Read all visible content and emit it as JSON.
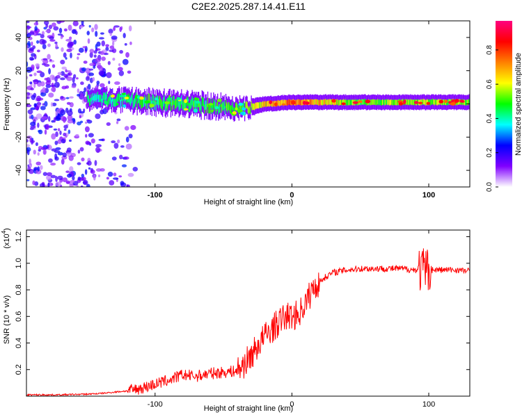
{
  "title": "C2E2.2025.287.14.41.E11",
  "chart_data": [
    {
      "type": "heatmap",
      "title": "C2E2.2025.287.14.41.E11",
      "xlabel": "Height of straight line (km)",
      "ylabel": "Frequency (Hz)",
      "xlim": [
        -194,
        130
      ],
      "ylim": [
        -50,
        50
      ],
      "x_ticks": [
        -100,
        0,
        100
      ],
      "y_ticks": [
        -40,
        -20,
        0,
        20,
        40
      ],
      "x_tick_labels": [
        "-100",
        "0",
        "100"
      ],
      "y_tick_labels": [
        "-40",
        "-20",
        "0",
        "20",
        "40"
      ],
      "colorbar": {
        "label": "Normalized spectral amplitude",
        "range": [
          0,
          0.97
        ],
        "ticks": [
          0,
          0.2,
          0.4,
          0.6,
          0.8
        ],
        "tick_labels": [
          "0.0",
          "0.2",
          "0.4",
          "0.6",
          "0.8"
        ],
        "colormap": [
          "#ffffff",
          "#8000ff",
          "#0000ff",
          "#00ffff",
          "#00ff00",
          "#ffff00",
          "#ff8000",
          "#ff0000",
          "#ff0080"
        ]
      },
      "description_points": [
        {
          "x": -160,
          "band": "noise",
          "amplitude": 0.35
        },
        {
          "x": -140,
          "center_hz": 3,
          "width_hz": 8,
          "amplitude": 0.45
        },
        {
          "x": -100,
          "center_hz": 1,
          "width_hz": 10,
          "amplitude": 0.5
        },
        {
          "x": -60,
          "center_hz": -1,
          "width_hz": 10,
          "amplitude": 0.5
        },
        {
          "x": -35,
          "center_hz": -3,
          "width_hz": 8,
          "amplitude": 0.55
        },
        {
          "x": -20,
          "center_hz": 0,
          "width_hz": 6,
          "amplitude": 0.7
        },
        {
          "x": 0,
          "center_hz": 1,
          "width_hz": 6,
          "amplitude": 0.8
        },
        {
          "x": 50,
          "center_hz": 1,
          "width_hz": 6,
          "amplitude": 0.55
        },
        {
          "x": 100,
          "center_hz": 1,
          "width_hz": 6,
          "amplitude": 0.6
        },
        {
          "x": 130,
          "center_hz": 1,
          "width_hz": 6,
          "amplitude": 0.55
        }
      ]
    },
    {
      "type": "line",
      "xlabel": "Height of straight line (km)",
      "ylabel": "SNR (10 * v/v)",
      "y_multiplier": "(x10",
      "y_multiplier_exp": "4",
      "y_multiplier_close": ")",
      "xlim": [
        -194,
        130
      ],
      "ylim": [
        0,
        1.25
      ],
      "x_ticks": [
        -100,
        0,
        100
      ],
      "y_ticks": [
        0.2,
        0.4,
        0.6,
        0.8,
        1.0,
        1.2
      ],
      "x_tick_labels": [
        "-100",
        "0",
        "100"
      ],
      "y_tick_labels": [
        "0.2",
        "0.4",
        "0.6",
        "0.8",
        "1.0",
        "1.2"
      ],
      "series": [
        {
          "name": "SNR",
          "color": "#ff0000",
          "x": [
            -194,
            -170,
            -150,
            -140,
            -130,
            -120,
            -110,
            -100,
            -90,
            -80,
            -70,
            -60,
            -50,
            -40,
            -35,
            -30,
            -25,
            -20,
            -15,
            -10,
            -5,
            0,
            5,
            10,
            15,
            20,
            25,
            30,
            40,
            50,
            60,
            70,
            80,
            90,
            95,
            100,
            105,
            110,
            120,
            130
          ],
          "y": [
            0.01,
            0.01,
            0.015,
            0.02,
            0.03,
            0.04,
            0.06,
            0.09,
            0.12,
            0.16,
            0.15,
            0.17,
            0.18,
            0.19,
            0.24,
            0.3,
            0.38,
            0.45,
            0.5,
            0.55,
            0.6,
            0.6,
            0.62,
            0.7,
            0.8,
            0.86,
            0.9,
            0.93,
            0.95,
            0.96,
            0.96,
            0.96,
            0.96,
            0.95,
            0.95,
            0.95,
            0.95,
            0.95,
            0.95,
            0.94
          ]
        }
      ]
    }
  ]
}
